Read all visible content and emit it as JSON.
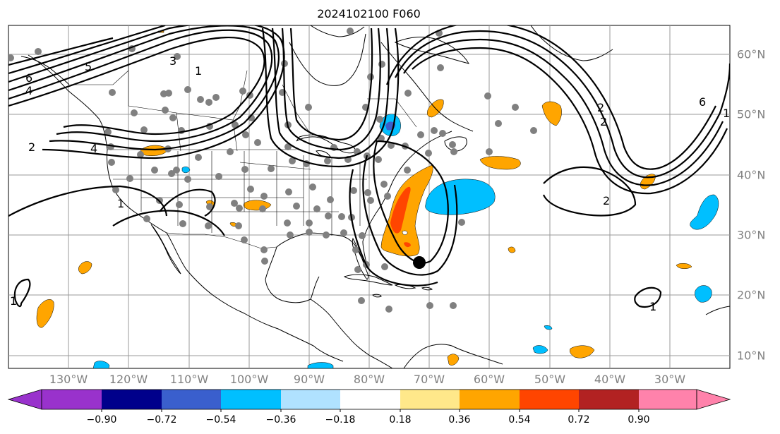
{
  "title": "2024102100 F060",
  "map": {
    "lon_labels": [
      "130°W",
      "120°W",
      "110°W",
      "100°W",
      "90°W",
      "80°W",
      "70°W",
      "60°W",
      "50°W",
      "40°W",
      "30°W"
    ],
    "lat_labels": [
      "60°N",
      "50°N",
      "40°N",
      "30°N",
      "20°N",
      "10°N"
    ],
    "contour_labels": [
      "6",
      "5",
      "4",
      "3",
      "2",
      "1",
      "4",
      "2",
      "1",
      "2",
      "6",
      "1",
      "2",
      "1",
      "1"
    ],
    "storm_marker": "black-dot",
    "station_marker_color": "#808080"
  },
  "colorbar": {
    "ticks": [
      "−0.90",
      "−0.72",
      "−0.54",
      "−0.36",
      "−0.18",
      "0.18",
      "0.36",
      "0.54",
      "0.72",
      "0.90"
    ],
    "colors": [
      "#9932cc",
      "#00008b",
      "#3a5fcd",
      "#00bfff",
      "#b0e2ff",
      "#ffffff",
      "#ffe88a",
      "#ffa500",
      "#ff4500",
      "#b22222",
      "#ff82ab"
    ]
  }
}
